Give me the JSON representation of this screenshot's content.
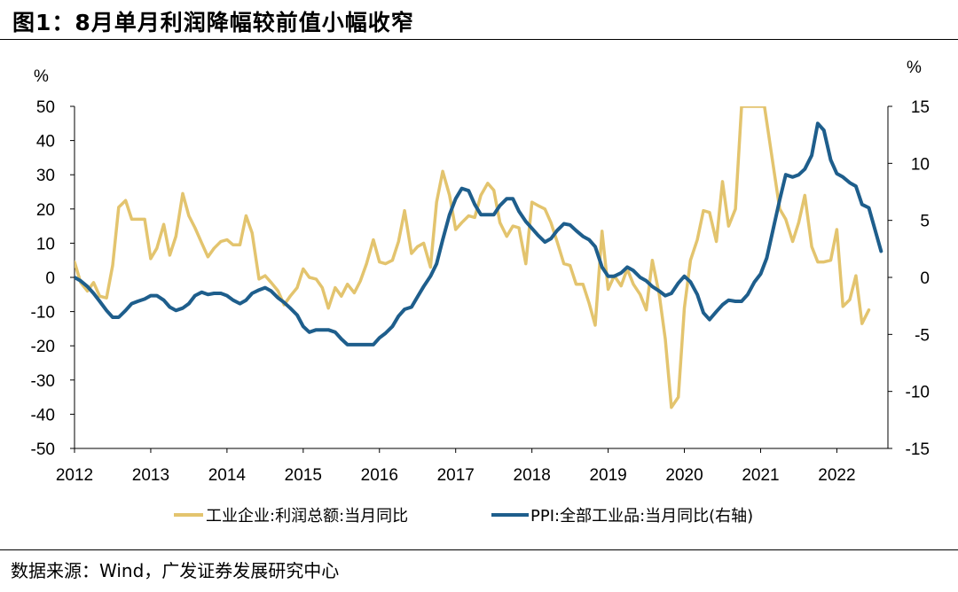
{
  "title": "图1：8月单月利润降幅较前值小幅收窄",
  "source": "数据来源：Wind，广发证券发展研究中心",
  "chart_data": {
    "type": "line",
    "title": "图1：8月单月利润降幅较前值小幅收窄",
    "xlabel": "",
    "left_unit": "%",
    "right_unit": "%",
    "x_ticks": [
      "2012",
      "2013",
      "2014",
      "2015",
      "2016",
      "2017",
      "2018",
      "2019",
      "2020",
      "2021",
      "2022"
    ],
    "x_range": [
      2012.0,
      2022.67
    ],
    "y_left_ticks": [
      "50",
      "40",
      "30",
      "20",
      "10",
      "0",
      "-10",
      "-20",
      "-30",
      "-40",
      "-50"
    ],
    "y_left_range": [
      -50,
      50
    ],
    "y_right_ticks": [
      "15",
      "10",
      "5",
      "0",
      "-5",
      "-10",
      "-15"
    ],
    "y_right_range": [
      -15,
      15
    ],
    "legend_position": "bottom",
    "grid": false,
    "series": [
      {
        "name": "工业企业:利润总额:当月同比",
        "axis": "left",
        "color": "#E3C46E",
        "points": [
          [
            2012.0,
            4.5
          ],
          [
            2012.08,
            -1.5
          ],
          [
            2012.17,
            -4.0
          ],
          [
            2012.25,
            -1.5
          ],
          [
            2012.33,
            -5.5
          ],
          [
            2012.42,
            -6.0
          ],
          [
            2012.5,
            3.5
          ],
          [
            2012.58,
            20.5
          ],
          [
            2012.67,
            22.5
          ],
          [
            2012.75,
            17.0
          ],
          [
            2012.83,
            17.0
          ],
          [
            2012.92,
            17.0
          ],
          [
            2013.0,
            5.5
          ],
          [
            2013.08,
            8.5
          ],
          [
            2013.17,
            15.5
          ],
          [
            2013.25,
            6.5
          ],
          [
            2013.33,
            12.0
          ],
          [
            2013.42,
            24.5
          ],
          [
            2013.5,
            18.0
          ],
          [
            2013.58,
            14.5
          ],
          [
            2013.67,
            10.0
          ],
          [
            2013.75,
            6.0
          ],
          [
            2013.83,
            8.5
          ],
          [
            2013.92,
            10.5
          ],
          [
            2014.0,
            11.0
          ],
          [
            2014.08,
            9.5
          ],
          [
            2014.17,
            9.5
          ],
          [
            2014.25,
            18.0
          ],
          [
            2014.33,
            13.0
          ],
          [
            2014.42,
            -0.5
          ],
          [
            2014.5,
            0.5
          ],
          [
            2014.58,
            -1.5
          ],
          [
            2014.67,
            -4.0
          ],
          [
            2014.75,
            -8.0
          ],
          [
            2014.83,
            -5.5
          ],
          [
            2014.92,
            -3.0
          ],
          [
            2015.0,
            2.5
          ],
          [
            2015.08,
            0.0
          ],
          [
            2015.17,
            -0.5
          ],
          [
            2015.25,
            -3.0
          ],
          [
            2015.33,
            -9.0
          ],
          [
            2015.42,
            -3.0
          ],
          [
            2015.5,
            -5.5
          ],
          [
            2015.58,
            -2.0
          ],
          [
            2015.67,
            -4.5
          ],
          [
            2015.75,
            -1.0
          ],
          [
            2015.83,
            4.0
          ],
          [
            2015.92,
            11.0
          ],
          [
            2016.0,
            4.5
          ],
          [
            2016.08,
            4.0
          ],
          [
            2016.17,
            5.0
          ],
          [
            2016.25,
            10.5
          ],
          [
            2016.33,
            19.5
          ],
          [
            2016.42,
            7.0
          ],
          [
            2016.5,
            9.0
          ],
          [
            2016.58,
            10.0
          ],
          [
            2016.67,
            3.0
          ],
          [
            2016.75,
            22.0
          ],
          [
            2016.83,
            31.0
          ],
          [
            2016.92,
            24.0
          ],
          [
            2017.0,
            14.0
          ],
          [
            2017.08,
            16.0
          ],
          [
            2017.17,
            18.0
          ],
          [
            2017.25,
            17.5
          ],
          [
            2017.33,
            24.0
          ],
          [
            2017.42,
            27.5
          ],
          [
            2017.5,
            25.5
          ],
          [
            2017.58,
            16.0
          ],
          [
            2017.67,
            12.0
          ],
          [
            2017.75,
            15.0
          ],
          [
            2017.83,
            14.5
          ],
          [
            2017.92,
            4.0
          ],
          [
            2018.0,
            22.0
          ],
          [
            2018.08,
            21.0
          ],
          [
            2018.17,
            20.0
          ],
          [
            2018.25,
            16.0
          ],
          [
            2018.33,
            10.5
          ],
          [
            2018.42,
            4.0
          ],
          [
            2018.5,
            3.5
          ],
          [
            2018.58,
            -2.0
          ],
          [
            2018.67,
            -2.0
          ],
          [
            2018.75,
            -7.5
          ],
          [
            2018.83,
            -14.0
          ],
          [
            2018.92,
            13.5
          ],
          [
            2019.0,
            -3.5
          ],
          [
            2019.08,
            0.5
          ],
          [
            2019.17,
            -2.5
          ],
          [
            2019.25,
            2.5
          ],
          [
            2019.33,
            -2.0
          ],
          [
            2019.42,
            -5.0
          ],
          [
            2019.5,
            -9.5
          ],
          [
            2019.58,
            5.0
          ],
          [
            2019.67,
            -5.0
          ],
          [
            2019.75,
            -18.0
          ],
          [
            2019.83,
            -38.0
          ],
          [
            2019.92,
            -35.0
          ],
          [
            2020.0,
            -9.0
          ],
          [
            2020.08,
            5.0
          ],
          [
            2020.17,
            11.0
          ],
          [
            2020.25,
            19.5
          ],
          [
            2020.33,
            19.0
          ],
          [
            2020.42,
            10.5
          ],
          [
            2020.5,
            28.0
          ],
          [
            2020.58,
            15.0
          ],
          [
            2020.67,
            20.0
          ],
          [
            2020.75,
            50.0
          ],
          [
            2021.05,
            50.0
          ],
          [
            2021.17,
            32.0
          ],
          [
            2021.25,
            20.0
          ],
          [
            2021.33,
            17.0
          ],
          [
            2021.42,
            10.5
          ],
          [
            2021.5,
            16.0
          ],
          [
            2021.58,
            24.0
          ],
          [
            2021.67,
            9.0
          ],
          [
            2021.75,
            4.5
          ],
          [
            2021.83,
            4.5
          ],
          [
            2021.92,
            5.0
          ],
          [
            2022.0,
            14.0
          ],
          [
            2022.08,
            -8.5
          ],
          [
            2022.17,
            -6.5
          ],
          [
            2022.25,
            0.5
          ],
          [
            2022.33,
            -13.5
          ],
          [
            2022.42,
            -9.5
          ]
        ]
      },
      {
        "name": "PPI:全部工业品:当月同比(右轴)",
        "axis": "right",
        "color": "#1E5E8C",
        "points": [
          [
            2012.0,
            0.0
          ],
          [
            2012.08,
            -0.3
          ],
          [
            2012.17,
            -0.8
          ],
          [
            2012.25,
            -1.4
          ],
          [
            2012.33,
            -2.1
          ],
          [
            2012.42,
            -2.9
          ],
          [
            2012.5,
            -3.5
          ],
          [
            2012.58,
            -3.5
          ],
          [
            2012.67,
            -2.9
          ],
          [
            2012.75,
            -2.3
          ],
          [
            2012.83,
            -2.1
          ],
          [
            2012.92,
            -1.9
          ],
          [
            2013.0,
            -1.6
          ],
          [
            2013.08,
            -1.6
          ],
          [
            2013.17,
            -2.0
          ],
          [
            2013.25,
            -2.6
          ],
          [
            2013.33,
            -2.9
          ],
          [
            2013.42,
            -2.7
          ],
          [
            2013.5,
            -2.3
          ],
          [
            2013.58,
            -1.6
          ],
          [
            2013.67,
            -1.3
          ],
          [
            2013.75,
            -1.5
          ],
          [
            2013.83,
            -1.4
          ],
          [
            2013.92,
            -1.4
          ],
          [
            2014.0,
            -1.6
          ],
          [
            2014.08,
            -2.0
          ],
          [
            2014.17,
            -2.3
          ],
          [
            2014.25,
            -2.0
          ],
          [
            2014.33,
            -1.4
          ],
          [
            2014.42,
            -1.1
          ],
          [
            2014.5,
            -0.9
          ],
          [
            2014.58,
            -1.2
          ],
          [
            2014.67,
            -1.8
          ],
          [
            2014.75,
            -2.2
          ],
          [
            2014.83,
            -2.7
          ],
          [
            2014.92,
            -3.3
          ],
          [
            2015.0,
            -4.3
          ],
          [
            2015.08,
            -4.8
          ],
          [
            2015.17,
            -4.6
          ],
          [
            2015.25,
            -4.6
          ],
          [
            2015.33,
            -4.6
          ],
          [
            2015.42,
            -4.8
          ],
          [
            2015.5,
            -5.4
          ],
          [
            2015.58,
            -5.9
          ],
          [
            2015.67,
            -5.9
          ],
          [
            2015.75,
            -5.9
          ],
          [
            2015.83,
            -5.9
          ],
          [
            2015.92,
            -5.9
          ],
          [
            2016.0,
            -5.3
          ],
          [
            2016.08,
            -4.9
          ],
          [
            2016.17,
            -4.3
          ],
          [
            2016.25,
            -3.4
          ],
          [
            2016.33,
            -2.8
          ],
          [
            2016.42,
            -2.6
          ],
          [
            2016.5,
            -1.7
          ],
          [
            2016.58,
            -0.8
          ],
          [
            2016.67,
            0.1
          ],
          [
            2016.75,
            1.2
          ],
          [
            2016.83,
            3.3
          ],
          [
            2016.92,
            5.5
          ],
          [
            2017.0,
            6.9
          ],
          [
            2017.08,
            7.8
          ],
          [
            2017.17,
            7.6
          ],
          [
            2017.25,
            6.4
          ],
          [
            2017.33,
            5.5
          ],
          [
            2017.42,
            5.5
          ],
          [
            2017.5,
            5.5
          ],
          [
            2017.58,
            6.3
          ],
          [
            2017.67,
            6.9
          ],
          [
            2017.75,
            6.9
          ],
          [
            2017.83,
            5.8
          ],
          [
            2017.92,
            4.9
          ],
          [
            2018.0,
            4.3
          ],
          [
            2018.08,
            3.7
          ],
          [
            2018.17,
            3.1
          ],
          [
            2018.25,
            3.4
          ],
          [
            2018.33,
            4.1
          ],
          [
            2018.42,
            4.7
          ],
          [
            2018.5,
            4.6
          ],
          [
            2018.58,
            4.1
          ],
          [
            2018.67,
            3.6
          ],
          [
            2018.75,
            3.3
          ],
          [
            2018.83,
            2.7
          ],
          [
            2018.92,
            0.9
          ],
          [
            2019.0,
            0.1
          ],
          [
            2019.08,
            0.1
          ],
          [
            2019.17,
            0.4
          ],
          [
            2019.25,
            0.9
          ],
          [
            2019.33,
            0.6
          ],
          [
            2019.42,
            0.0
          ],
          [
            2019.5,
            -0.3
          ],
          [
            2019.58,
            -0.8
          ],
          [
            2019.67,
            -1.2
          ],
          [
            2019.75,
            -1.6
          ],
          [
            2019.83,
            -1.4
          ],
          [
            2019.92,
            -0.5
          ],
          [
            2020.0,
            0.1
          ],
          [
            2020.08,
            -0.4
          ],
          [
            2020.17,
            -1.5
          ],
          [
            2020.25,
            -3.1
          ],
          [
            2020.33,
            -3.7
          ],
          [
            2020.42,
            -3.0
          ],
          [
            2020.5,
            -2.4
          ],
          [
            2020.58,
            -2.0
          ],
          [
            2020.67,
            -2.1
          ],
          [
            2020.75,
            -2.1
          ],
          [
            2020.83,
            -1.5
          ],
          [
            2020.92,
            -0.4
          ],
          [
            2021.0,
            0.3
          ],
          [
            2021.08,
            1.7
          ],
          [
            2021.17,
            4.4
          ],
          [
            2021.25,
            6.8
          ],
          [
            2021.33,
            9.0
          ],
          [
            2021.42,
            8.8
          ],
          [
            2021.5,
            9.0
          ],
          [
            2021.58,
            9.5
          ],
          [
            2021.67,
            10.7
          ],
          [
            2021.75,
            13.5
          ],
          [
            2021.83,
            12.9
          ],
          [
            2021.92,
            10.3
          ],
          [
            2022.0,
            9.1
          ],
          [
            2022.08,
            8.8
          ],
          [
            2022.17,
            8.3
          ],
          [
            2022.25,
            8.0
          ],
          [
            2022.33,
            6.4
          ],
          [
            2022.42,
            6.1
          ],
          [
            2022.5,
            4.2
          ],
          [
            2022.58,
            2.3
          ]
        ]
      }
    ]
  }
}
